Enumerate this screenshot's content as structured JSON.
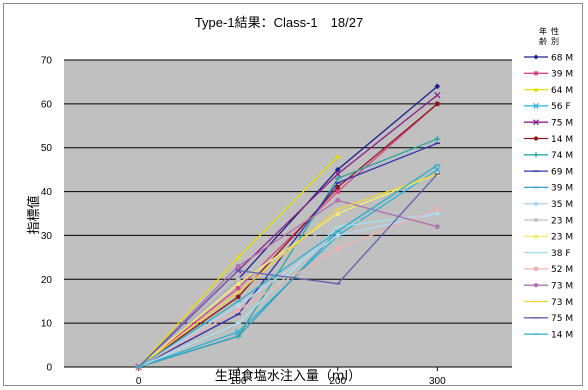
{
  "chart_data": {
    "type": "line",
    "title": "Type-1結果：Class-1　18/27",
    "xlabel": "生理食塩水注入量（ml）",
    "ylabel": "指標値",
    "x": [
      0,
      100,
      200,
      300
    ],
    "x_ticks": [
      "0",
      "100",
      "200",
      "300"
    ],
    "ylim": [
      0,
      70
    ],
    "y_ticks": [
      "0",
      "10",
      "20",
      "30",
      "40",
      "50",
      "60",
      "70"
    ],
    "grid": true,
    "legend_position": "right",
    "legend_header": [
      "年",
      "齢",
      "性",
      "別"
    ],
    "series": [
      {
        "name": "68 M",
        "color": "#1f1f8c",
        "marker": "diamond",
        "values": [
          0,
          20,
          45,
          64
        ]
      },
      {
        "name": "39 M",
        "color": "#d9468c",
        "marker": "square",
        "values": [
          0,
          18,
          40,
          60
        ]
      },
      {
        "name": "64 M",
        "color": "#e8e000",
        "marker": "triangle",
        "values": [
          0,
          25,
          48,
          null
        ]
      },
      {
        "name": "56 F",
        "color": "#29b3d9",
        "marker": "x",
        "values": [
          0,
          8,
          30,
          45
        ]
      },
      {
        "name": "75 M",
        "color": "#8c1f8c",
        "marker": "x",
        "values": [
          0,
          22,
          44,
          62
        ]
      },
      {
        "name": "14 M",
        "color": "#8c1a1a",
        "marker": "circle",
        "values": [
          0,
          16,
          41,
          60
        ]
      },
      {
        "name": "74 M",
        "color": "#2aa7a0",
        "marker": "plus",
        "values": [
          0,
          7,
          43,
          52
        ]
      },
      {
        "name": "69 M",
        "color": "#3030b0",
        "marker": "line",
        "values": [
          0,
          12,
          42,
          51
        ]
      },
      {
        "name": "39 M",
        "color": "#35a0c0",
        "marker": "line",
        "values": [
          0,
          7,
          31,
          46
        ]
      },
      {
        "name": "35 M",
        "color": "#b5d6f0",
        "marker": "circle",
        "values": [
          0,
          14,
          30,
          35
        ]
      },
      {
        "name": "23 M",
        "color": "#c0c0c0",
        "marker": "circle",
        "values": [
          0,
          20,
          33,
          34
        ]
      },
      {
        "name": "23 M",
        "color": "#f0f070",
        "marker": "triangle",
        "values": [
          0,
          19,
          35,
          44
        ]
      },
      {
        "name": "38 F",
        "color": "#a6e0f0",
        "marker": "line",
        "values": [
          0,
          10,
          32,
          35
        ]
      },
      {
        "name": "52 M",
        "color": "#f0b0b0",
        "marker": "square",
        "values": [
          0,
          13,
          27,
          36
        ]
      },
      {
        "name": "73 M",
        "color": "#b070b0",
        "marker": "circle",
        "values": [
          0,
          23,
          38,
          32
        ]
      },
      {
        "name": "73 M",
        "color": "#f0d040",
        "marker": "line",
        "values": [
          0,
          17,
          36,
          44
        ]
      },
      {
        "name": "75 M",
        "color": "#6060b0",
        "marker": "line",
        "values": [
          0,
          22,
          19,
          44
        ]
      },
      {
        "name": "14 M",
        "color": "#30b0d0",
        "marker": "line",
        "values": [
          0,
          15,
          31,
          46
        ]
      }
    ]
  },
  "colors": {
    "plot_background": "#c0c0c0",
    "grid": "#000000"
  }
}
